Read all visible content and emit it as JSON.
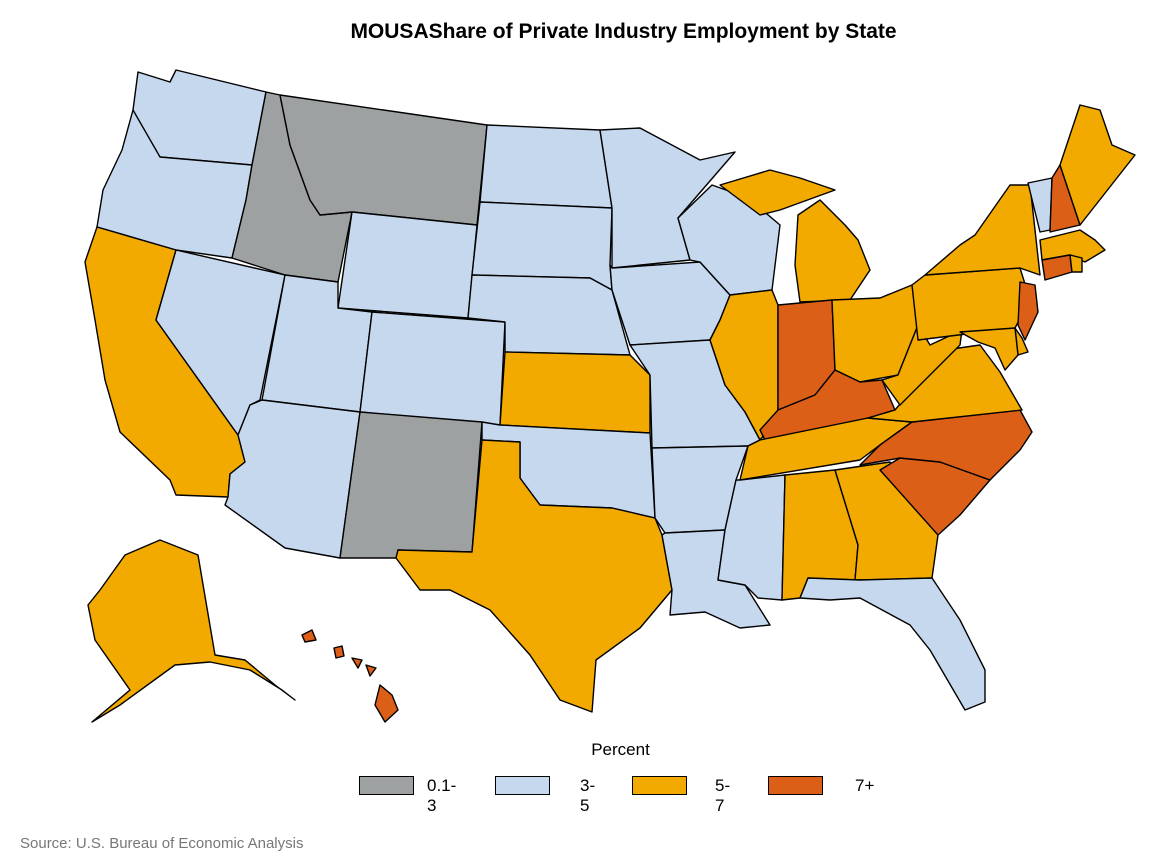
{
  "title": "MOUSAShare of Private Industry Employment by State",
  "legend": {
    "title": "Percent",
    "items": [
      {
        "label": "0.1-3",
        "color": "#9ea1a2"
      },
      {
        "label": "3-5",
        "color": "#c6d8ee"
      },
      {
        "label": "5-7",
        "color": "#f2a900"
      },
      {
        "label": "7+",
        "color": "#dc5f18"
      }
    ]
  },
  "source": "Source: U.S. Bureau of Economic Analysis",
  "states": {
    "WA": "3-5",
    "OR": "3-5",
    "CA": "5-7",
    "NV": "3-5",
    "ID": "0.1-3",
    "MT": "0.1-3",
    "WY": "3-5",
    "UT": "3-5",
    "AZ": "3-5",
    "CO": "3-5",
    "NM": "0.1-3",
    "ND": "3-5",
    "SD": "3-5",
    "NE": "3-5",
    "KS": "5-7",
    "OK": "3-5",
    "TX": "5-7",
    "MN": "3-5",
    "IA": "3-5",
    "MO": "3-5",
    "AR": "3-5",
    "LA": "3-5",
    "WI": "3-5",
    "IL": "5-7",
    "MI": "5-7",
    "IN": "7+",
    "OH": "5-7",
    "KY": "7+",
    "TN": "5-7",
    "MS": "3-5",
    "AL": "5-7",
    "GA": "5-7",
    "FL": "3-5",
    "SC": "7+",
    "NC": "7+",
    "VA": "5-7",
    "WV": "5-7",
    "PA": "5-7",
    "NY": "5-7",
    "VT": "3-5",
    "NH": "7+",
    "ME": "5-7",
    "MA": "5-7",
    "RI": "5-7",
    "CT": "7+",
    "NJ": "7+",
    "DE": "5-7",
    "MD": "5-7",
    "AK": "5-7",
    "HI": "7+"
  }
}
